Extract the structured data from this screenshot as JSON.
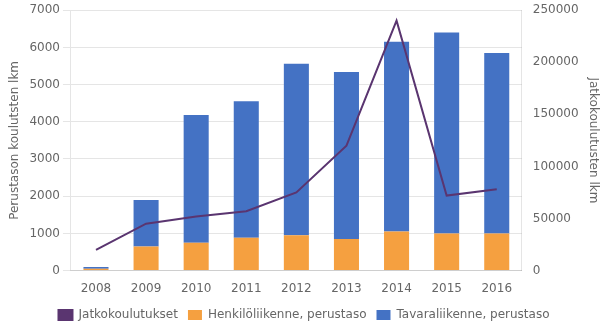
{
  "chart_data": {
    "type": "bar",
    "stacked": true,
    "categories": [
      "2008",
      "2009",
      "2010",
      "2011",
      "2012",
      "2013",
      "2014",
      "2015",
      "2016"
    ],
    "series": [
      {
        "name": "Henkilöliikenne, perustaso",
        "type": "bar",
        "color": "#f5a040",
        "values": [
          50,
          650,
          750,
          880,
          950,
          850,
          1050,
          1000,
          1000
        ]
      },
      {
        "name": "Tavaraliikenne, perustaso",
        "type": "bar",
        "color": "#4472c4",
        "values": [
          50,
          1250,
          3430,
          3670,
          4610,
          4490,
          5100,
          5400,
          4850
        ]
      },
      {
        "name": "Jatkokoulutukset",
        "type": "line",
        "color": "#5a3570",
        "axis": "y2",
        "values": [
          20000,
          45000,
          52000,
          57000,
          75000,
          120000,
          240000,
          72000,
          78000
        ]
      }
    ],
    "ylabel": "Perustason koulutsten lkm",
    "y2label": "Jatkokoulutusten lkm",
    "ylim": [
      0,
      7000
    ],
    "yticks": [
      0,
      1000,
      2000,
      3000,
      4000,
      5000,
      6000,
      7000
    ],
    "y2lim": [
      0,
      250000
    ],
    "y2ticks": [
      0,
      50000,
      100000,
      150000,
      200000,
      250000
    ],
    "grid": true,
    "legend": "bottom"
  }
}
